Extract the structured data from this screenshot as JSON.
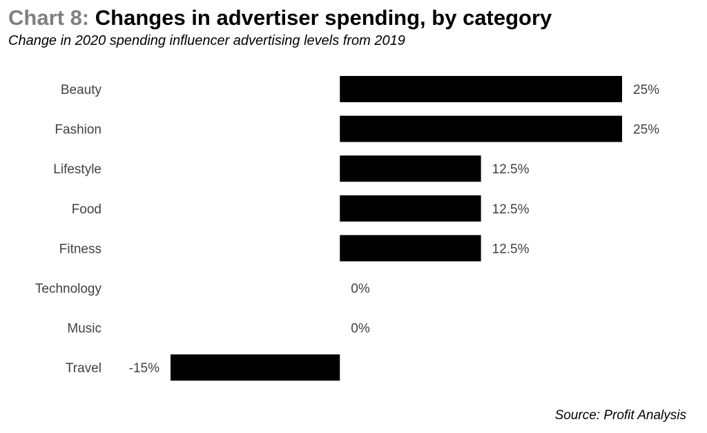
{
  "header": {
    "title_prefix": "Chart 8:",
    "title_main": "Changes in advertiser spending, by category",
    "subtitle": "Change in 2020 spending influencer advertising levels from 2019"
  },
  "footer": {
    "source": "Source: Profit Analysis"
  },
  "chart_data": {
    "type": "bar",
    "orientation": "horizontal",
    "title": "Chart 8: Changes in advertiser spending, by category",
    "subtitle": "Change in 2020 spending influencer advertising levels from 2019",
    "categories": [
      "Beauty",
      "Fashion",
      "Lifestyle",
      "Food",
      "Fitness",
      "Technology",
      "Music",
      "Travel"
    ],
    "values": [
      25,
      25,
      12.5,
      12.5,
      12.5,
      0,
      0,
      -15
    ],
    "data_labels": [
      "25%",
      "25%",
      "12.5%",
      "12.5%",
      "12.5%",
      "0%",
      "0%",
      "-15%"
    ],
    "xlabel": "",
    "ylabel": "",
    "xlim": [
      -15,
      25
    ],
    "grid": false,
    "legend": "none",
    "bar_color": "#000000",
    "label_color": "#404040",
    "source": "Source: Profit Analysis"
  }
}
